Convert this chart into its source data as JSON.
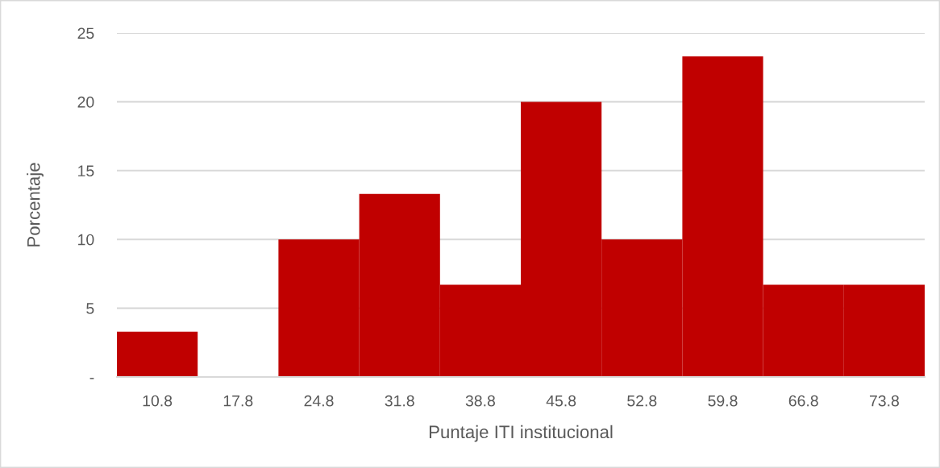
{
  "chart_data": {
    "type": "bar",
    "xlabel": "Puntaje ITI institucional",
    "ylabel": "Porcentaje",
    "categories": [
      "10.8",
      "17.8",
      "24.8",
      "31.8",
      "38.8",
      "45.8",
      "52.8",
      "59.8",
      "66.8",
      "73.8"
    ],
    "series": [
      {
        "color": "#c00000",
        "values": [
          3.3,
          0,
          10,
          13.3,
          6.7,
          20,
          10,
          23.3,
          6.7,
          6.7
        ]
      }
    ],
    "ylim": [
      0,
      25
    ],
    "yticks": [
      {
        "value": 0,
        "label": "-"
      },
      5,
      10,
      15,
      20,
      25
    ],
    "grid": "y"
  }
}
